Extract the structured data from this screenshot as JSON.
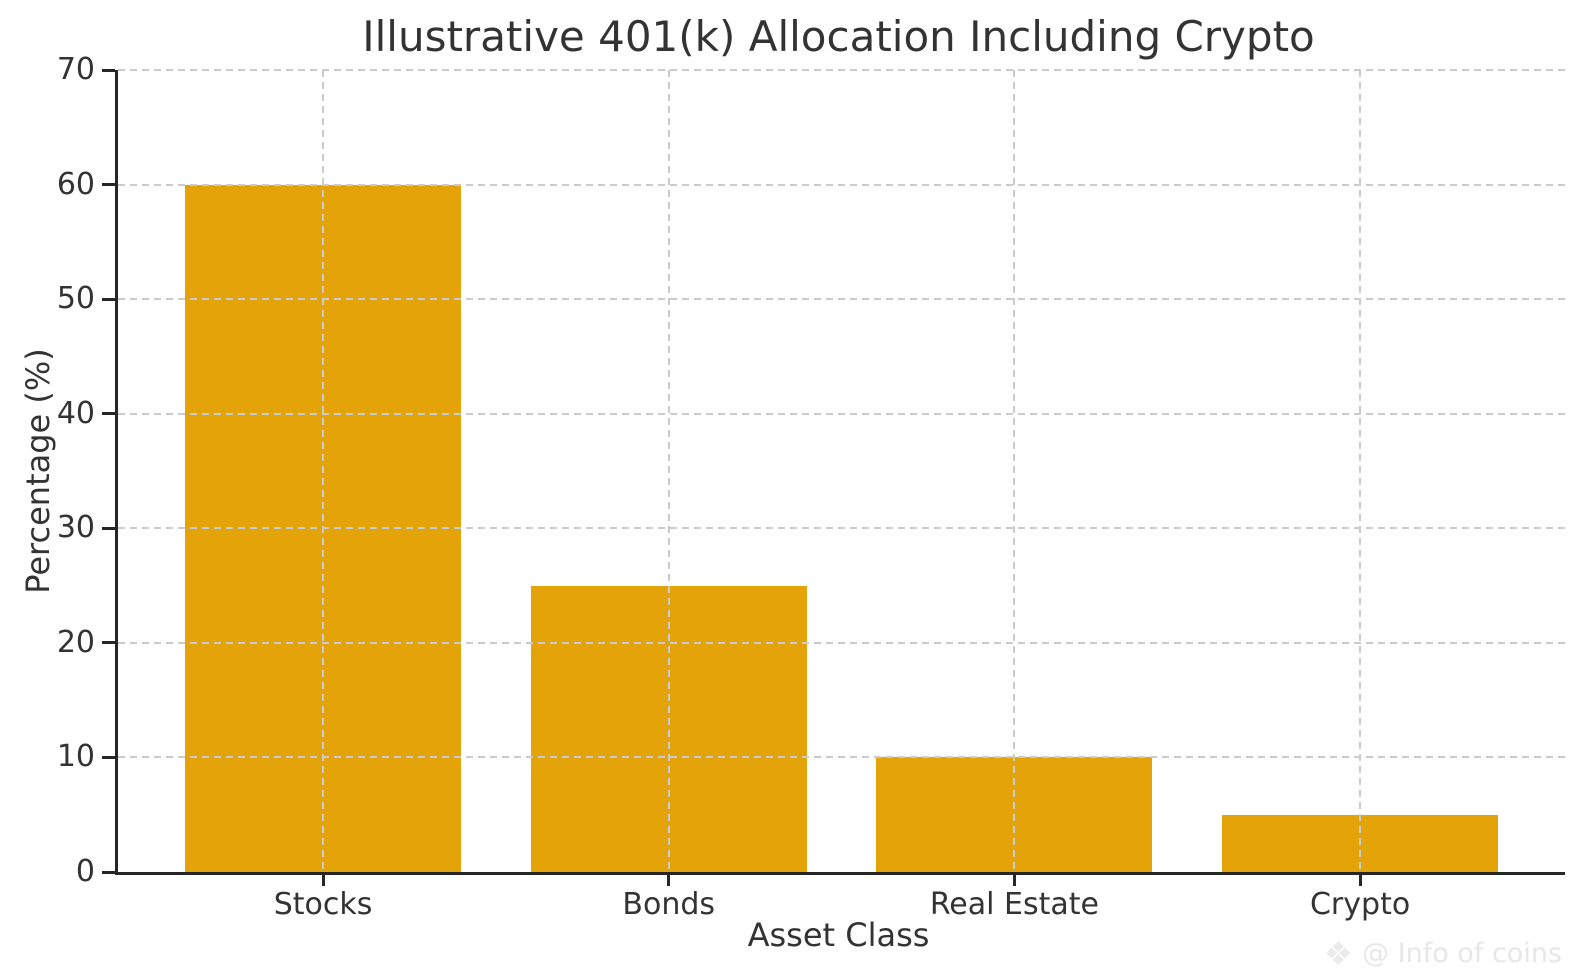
{
  "chart_data": {
    "type": "bar",
    "title": "Illustrative 401(k) Allocation Including Crypto",
    "xlabel": "Asset Class",
    "ylabel": "Percentage (%)",
    "categories": [
      "Stocks",
      "Bonds",
      "Real Estate",
      "Crypto"
    ],
    "values": [
      60,
      25,
      10,
      5
    ],
    "ylim": [
      0,
      70
    ],
    "yticks": [
      0,
      10,
      20,
      30,
      40,
      50,
      60,
      70
    ],
    "grid": "dashed, both axes, drawn above bars",
    "legend": "none",
    "bar_color": "#e4a309",
    "grid_color": "#cbcbcb",
    "axis_color": "#262626",
    "text_color": "#333333"
  },
  "watermark": {
    "icon": "diamond-logo",
    "text": "@ Info of coins"
  }
}
